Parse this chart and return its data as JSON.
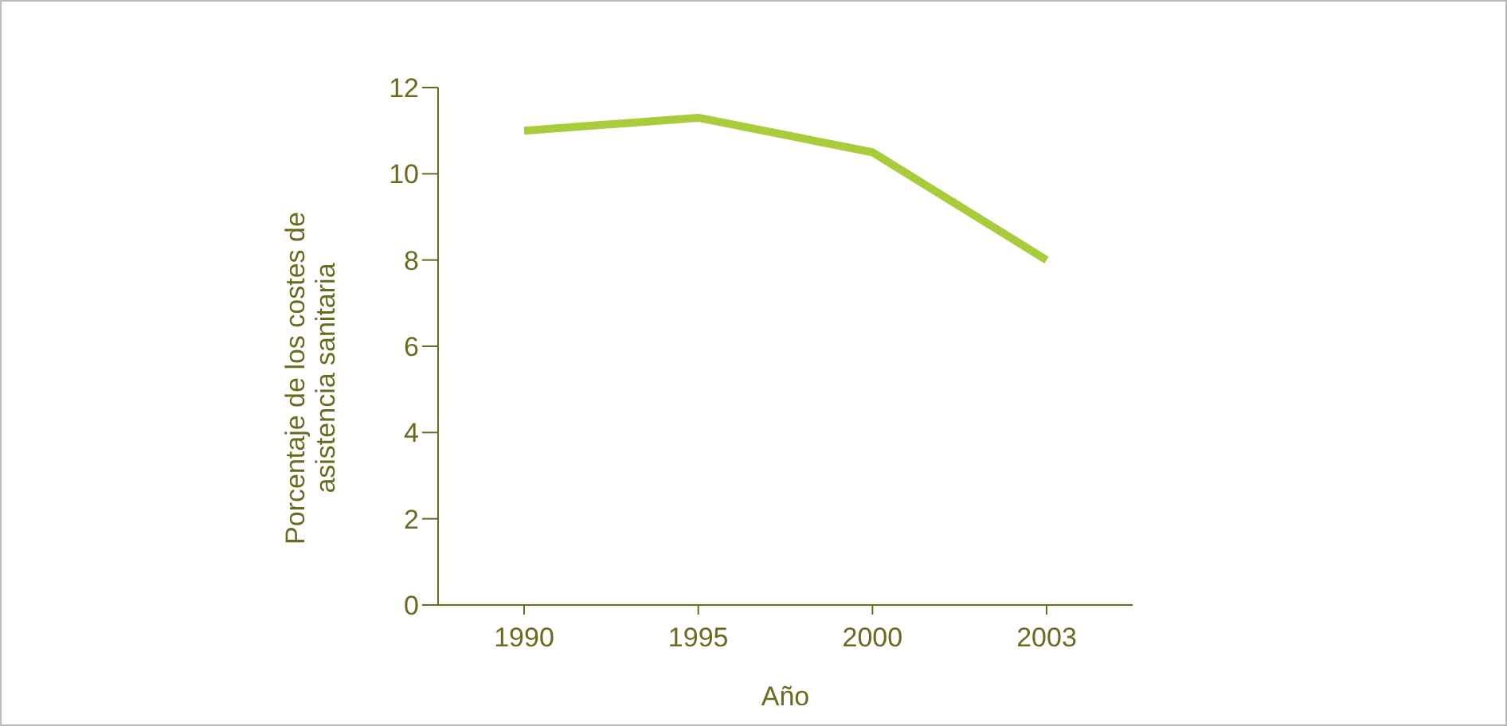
{
  "chart_data": {
    "type": "line",
    "xlabel": "Año",
    "ylabel": "Porcentaje de los costes de asistencia sanitaria",
    "categories": [
      "1990",
      "1995",
      "2000",
      "2003"
    ],
    "series": [
      {
        "color": "#a8cc3a",
        "values": [
          11,
          11.3,
          10.5,
          8
        ]
      }
    ],
    "ylim": [
      0,
      12
    ],
    "yticks": [
      0,
      2,
      4,
      6,
      8,
      10,
      12
    ],
    "grid": false,
    "legend": false,
    "marker": "none",
    "line_style": "solid"
  }
}
